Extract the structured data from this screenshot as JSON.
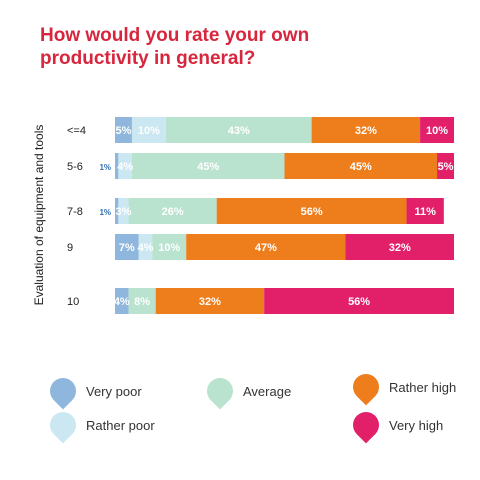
{
  "chart_data": {
    "type": "bar",
    "orientation": "horizontal",
    "stacked": true,
    "title": "How would you rate your own productivity in general?",
    "ylabel": "Evaluation of equipment and tools",
    "categories": [
      "<=4",
      "5-6",
      "7-8",
      "9",
      "10"
    ],
    "series": [
      {
        "name": "Very poor",
        "color": "#8fb6dc",
        "values": [
          5,
          1,
          1,
          7,
          4
        ],
        "labels": [
          "5%",
          "1%",
          "1%",
          "7%",
          "4%"
        ]
      },
      {
        "name": "Rather poor",
        "color": "#cbe8f2",
        "values": [
          10,
          4,
          3,
          4,
          0
        ],
        "labels": [
          "10%",
          "4%",
          "3%",
          "4%",
          ""
        ]
      },
      {
        "name": "Average",
        "color": "#b9e2cf",
        "values": [
          43,
          45,
          26,
          10,
          8
        ],
        "labels": [
          "43%",
          "45%",
          "26%",
          "10%",
          "8%"
        ]
      },
      {
        "name": "Rather high",
        "color": "#ee7d1c",
        "values": [
          32,
          45,
          56,
          47,
          32
        ],
        "labels": [
          "32%",
          "45%",
          "56%",
          "47%",
          "32%"
        ]
      },
      {
        "name": "Very high",
        "color": "#e2206a",
        "values": [
          10,
          5,
          11,
          32,
          56
        ],
        "labels": [
          "10%",
          "5%",
          "11%",
          "32%",
          "56%"
        ]
      }
    ],
    "xlim": [
      0,
      100
    ],
    "legend": "bottom"
  }
}
